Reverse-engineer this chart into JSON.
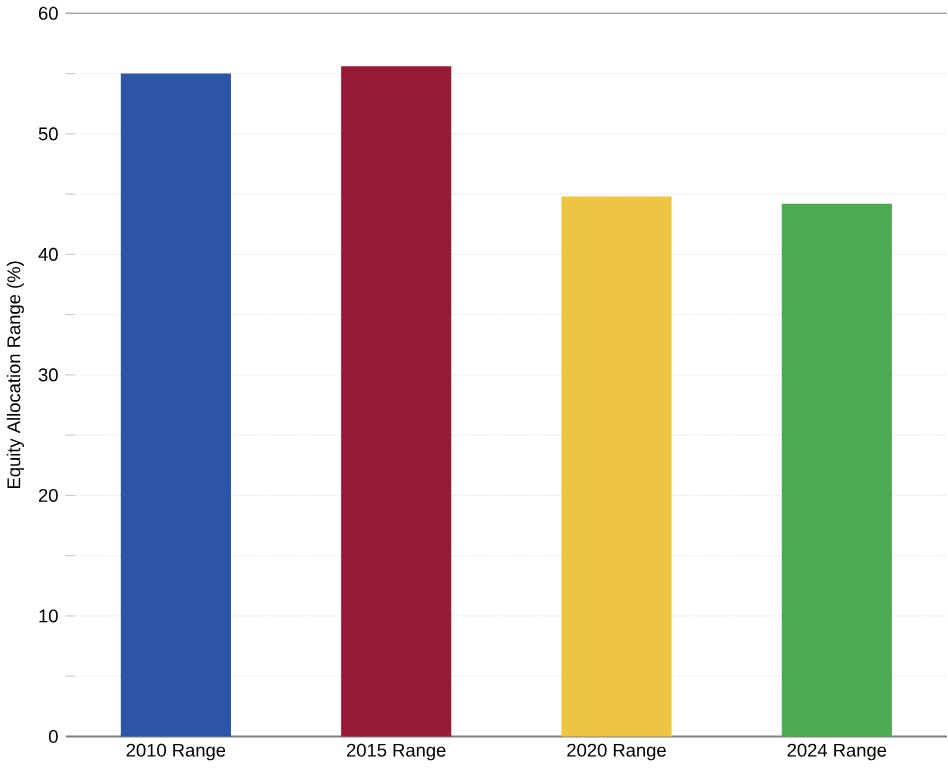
{
  "chart_data": {
    "type": "bar",
    "ylabel": "Equity Allocation Range (%)",
    "categories": [
      "2010 Range",
      "2015 Range",
      "2020 Range",
      "2024 Range"
    ],
    "values": [
      55.0,
      55.6,
      44.8,
      44.2
    ],
    "colors": [
      "#2e54a8",
      "#961c35",
      "#ecc643",
      "#4cab52"
    ],
    "ylim": [
      0,
      60
    ],
    "yticks": [
      0,
      {
        "value": 5,
        "label": null
      },
      10,
      {
        "value": 15,
        "label": null
      },
      20,
      {
        "value": 25,
        "label": null
      },
      30,
      {
        "value": 35,
        "label": null
      },
      40,
      {
        "value": 45,
        "label": null
      },
      50,
      {
        "value": 55,
        "label": null
      },
      60
    ],
    "grid": "y"
  }
}
